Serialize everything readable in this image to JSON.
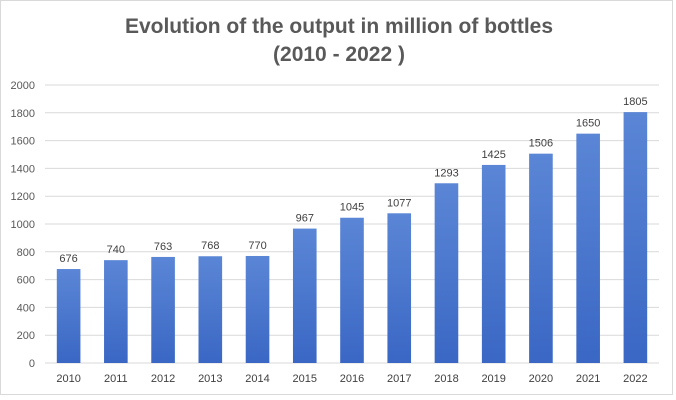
{
  "chart_data": {
    "type": "bar",
    "title": "Evolution of the output in million of bottles",
    "subtitle": "(2010 - 2022 )",
    "xlabel": "",
    "ylabel": "",
    "categories": [
      "2010",
      "2011",
      "2012",
      "2013",
      "2014",
      "2015",
      "2016",
      "2017",
      "2018",
      "2019",
      "2020",
      "2021",
      "2022"
    ],
    "values": [
      676,
      740,
      763,
      768,
      770,
      967,
      1045,
      1077,
      1293,
      1425,
      1506,
      1650,
      1805
    ],
    "ylim": [
      0,
      2000
    ],
    "yticks": [
      0,
      200,
      400,
      600,
      800,
      1000,
      1200,
      1400,
      1600,
      1800,
      2000
    ],
    "grid": true,
    "legend": "none",
    "data_labels": true,
    "bar_color_top": "#5b86d6",
    "bar_color_bottom": "#3a67c4"
  }
}
